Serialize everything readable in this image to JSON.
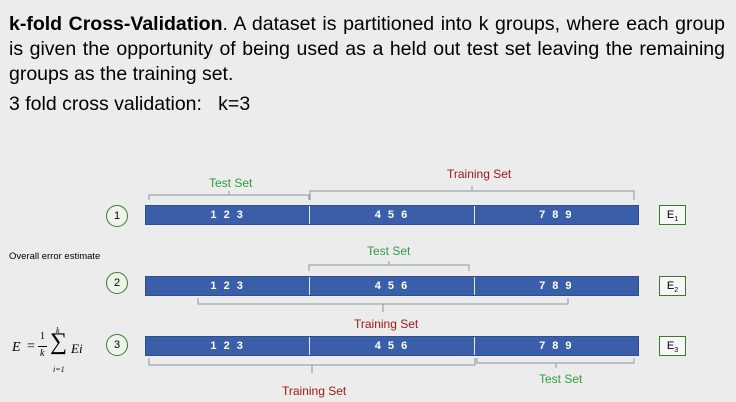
{
  "heading": {
    "bold_term": "k-fold Cross-Validation",
    "description": ". A dataset is partitioned into k groups, where each group is given the opportunity of being used as a held out test set leaving the remaining groups as the training set."
  },
  "subheading": "3 fold cross validation:   k=3",
  "side_label": "Overall error estimate",
  "formula": {
    "lhs": "E",
    "eq": "=",
    "frac_num": "1",
    "frac_den": "k",
    "sum_upper": "k",
    "sum_lower": "i=1",
    "term": "Ei"
  },
  "folds": [
    {
      "number": "1",
      "segments": [
        "1 2 3",
        "4 5 6",
        "7 8 9"
      ],
      "error_label": "E",
      "error_sub": "1"
    },
    {
      "number": "2",
      "segments": [
        "1 2 3",
        "4 5 6",
        "7 8 9"
      ],
      "error_label": "E",
      "error_sub": "2"
    },
    {
      "number": "3",
      "segments": [
        "1 2 3",
        "4 5 6",
        "7 8 9"
      ],
      "error_label": "E",
      "error_sub": "3"
    }
  ],
  "labels": {
    "test_set": "Test Set",
    "training_set": "Training Set"
  },
  "colors": {
    "background": "#ececec",
    "bar": "#3b5ea8",
    "test_label": "#2e9c3e",
    "training_label": "#a01818",
    "circle_border": "#3b7a2a"
  }
}
